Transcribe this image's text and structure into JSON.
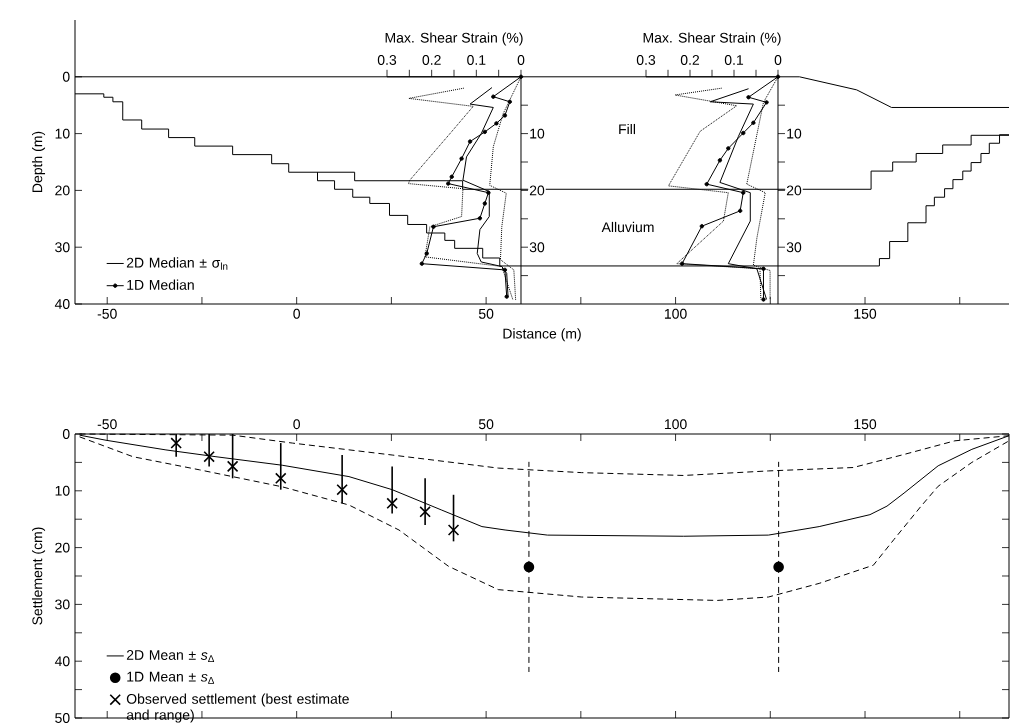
{
  "chart_data": [
    {
      "type": "line",
      "xlabel": "Distance (m)",
      "ylabel": "Depth (m)",
      "xlim": [
        -58.5,
        188
      ],
      "ylim": [
        40,
        -10
      ],
      "xticks": [
        -50,
        {
          "value": -25,
          "label": null
        },
        0,
        {
          "value": 25,
          "label": null
        },
        50,
        {
          "value": 75,
          "label": null
        },
        100,
        {
          "value": 125,
          "label": null
        },
        150,
        {
          "value": 175,
          "label": null
        }
      ],
      "yticks": [
        0,
        10,
        20,
        30,
        40
      ],
      "annotations": [
        "Fill",
        "Alluvium"
      ],
      "series": [
        {
          "type": "line",
          "color": "#000000",
          "line_style": "solid",
          "x": [
            -58.5,
            132.7,
            147.8,
            157,
            188
          ],
          "values": [
            0,
            0,
            2.3,
            5.4,
            5.4
          ]
        },
        {
          "type": "step",
          "color": "#000000",
          "line_style": "solid",
          "x": [
            -58.5,
            -50.9,
            -48.5,
            -45.9,
            -40.9,
            -33.8,
            -26.9,
            -16.9,
            -6.6,
            -2.1,
            15.3,
            43.8,
            151.6,
            157.3,
            163.5,
            170.5,
            178.0,
            188
          ],
          "values": [
            3.0,
            3.6,
            4.4,
            7.6,
            9.2,
            10.7,
            12.2,
            13.7,
            15.3,
            16.8,
            18.3,
            19.8,
            16.6,
            15.0,
            13.5,
            12.0,
            10.3,
            10.3
          ]
        },
        {
          "type": "step",
          "color": "#000000",
          "line_style": "solid",
          "x": [
            5.5,
            5.5,
            10.0,
            14.8,
            19.3,
            24.5,
            29.3,
            34.3,
            39.1,
            41.7,
            49.1,
            53.6,
            153.8,
            156.5,
            161.3,
            166.1,
            168.3,
            171.0,
            173.2,
            175.8,
            178.0,
            180.6,
            182.8,
            185.5,
            188
          ],
          "values": [
            16.8,
            18.3,
            19.8,
            21.2,
            22.3,
            24.4,
            26.0,
            27.5,
            28.8,
            30.2,
            31.9,
            33.3,
            32.0,
            29.0,
            25.7,
            22.7,
            21.2,
            19.7,
            18.1,
            16.6,
            15.1,
            13.5,
            11.7,
            10.2,
            10.2
          ]
        }
      ]
    },
    {
      "type": "line",
      "xlabel": "Max. Shear Strain (%)",
      "xlim": [
        0.3,
        0
      ],
      "ylim": [
        40,
        0
      ],
      "legend": "bottom left",
      "xticks": [
        0.3,
        {
          "value": 0.25,
          "label": null
        },
        0.2,
        {
          "value": 0.15,
          "label": null
        },
        0.1,
        {
          "value": 0.05,
          "label": null
        },
        0
      ],
      "yticks": [
        {
          "value": 5,
          "label": null
        },
        10,
        {
          "value": 15,
          "label": null
        },
        20,
        {
          "value": 25,
          "label": null
        },
        30,
        {
          "value": 35,
          "label": null
        }
      ],
      "series": [
        {
          "name": "2D Median ± σ$_{ln}$",
          "color": "#000000",
          "line_style": "solid",
          "x": [
            0.065,
            0.114,
            0.062,
            0.089,
            0.122,
            0.13,
            0.071,
            0.071,
            0.092,
            0.098,
            0.089,
            0.043,
            0.032,
            0.029
          ],
          "values": [
            1.9,
            4.8,
            5.4,
            10.0,
            14.1,
            18.2,
            20.2,
            24.6,
            26.9,
            31.1,
            32.6,
            33.4,
            34.6,
            38.7
          ]
        },
        {
          "color": "#000000",
          "line_style": "dotted",
          "x": [
            0.128,
            0.251,
            0.107,
            0.159,
            0.249,
            0.252,
            0.13,
            0.133,
            0.204,
            0.215,
            0.043,
            0.018
          ],
          "values": [
            2.0,
            3.8,
            5.2,
            10.0,
            18.2,
            18.8,
            19.7,
            24.6,
            26.4,
            31.7,
            33.4,
            39.3
          ]
        },
        {
          "color": "#000000",
          "line_style": "dotted",
          "x": [
            0,
            0.04,
            0.062,
            0.07,
            0.033,
            0.043,
            0.046,
            0.016,
            0.012
          ],
          "values": [
            0,
            6.5,
            12.3,
            19.1,
            20.5,
            26.4,
            32.2,
            34.0,
            39.3
          ]
        },
        {
          "name": "1D Median",
          "color": "#000000",
          "line_style": "solid",
          "marker": "circle",
          "x": [
            0,
            0.062,
            0.025,
            0.036,
            0.055,
            0.081,
            0.114,
            0.133,
            0.155,
            0.163,
            0.073,
            0.081,
            0.092,
            0.196,
            0.211,
            0.222,
            0.036,
            0.032
          ],
          "values": [
            0,
            3.5,
            4.4,
            6.8,
            8.2,
            9.7,
            11.4,
            14.4,
            17.6,
            18.8,
            20.4,
            22.3,
            24.9,
            26.4,
            31.1,
            32.9,
            34.0,
            38.7
          ]
        }
      ]
    },
    {
      "type": "line",
      "xlabel": "Max. Shear Strain (%)",
      "xlim": [
        0.3,
        0
      ],
      "ylim": [
        40,
        0
      ],
      "xticks": [
        0.3,
        {
          "value": 0.25,
          "label": null
        },
        0.2,
        {
          "value": 0.15,
          "label": null
        },
        0.1,
        {
          "value": 0.05,
          "label": null
        },
        0
      ],
      "yticks": [
        {
          "value": 5,
          "label": null
        },
        10,
        {
          "value": 15,
          "label": null
        },
        20,
        {
          "value": 25,
          "label": null
        },
        30,
        {
          "value": 35,
          "label": null
        }
      ],
      "series": [
        {
          "color": "#000000",
          "line_style": "solid",
          "x": [
            0.067,
            0.154,
            0.056,
            0.09,
            0.132,
            0.063,
            0.063,
            0.113,
            0.048,
            0.026
          ],
          "values": [
            2.1,
            4.4,
            4.8,
            10.5,
            18.6,
            20.4,
            25.4,
            32.9,
            33.8,
            39.2
          ]
        },
        {
          "color": "#000000",
          "line_style": "dotted",
          "x": [
            0.128,
            0.234,
            0.094,
            0.177,
            0.249,
            0.113,
            0.124,
            0.23,
            0.041,
            0.039
          ],
          "values": [
            2.0,
            3.2,
            5.1,
            9.6,
            19.2,
            20.4,
            25.4,
            32.9,
            33.8,
            39.2
          ]
        },
        {
          "color": "#000000",
          "line_style": "dotted",
          "x": [
            0,
            0.033,
            0.071,
            0.029,
            0.048,
            0.056,
            0.018,
            0.018
          ],
          "values": [
            0,
            4.5,
            18.9,
            20.4,
            28.4,
            33.2,
            34.1,
            39.2
          ]
        },
        {
          "color": "#000000",
          "line_style": "solid",
          "marker": "circle",
          "x": [
            0,
            0.067,
            0.026,
            0.056,
            0.079,
            0.113,
            0.132,
            0.162,
            0.079,
            0.086,
            0.173,
            0.218,
            0.033,
            0.033
          ],
          "values": [
            0,
            3.6,
            4.5,
            8.1,
            9.9,
            12.6,
            14.7,
            18.9,
            20.4,
            23.6,
            26.3,
            32.9,
            33.8,
            39.2
          ]
        }
      ]
    },
    {
      "type": "line",
      "ylabel": "Settlement (cm)",
      "xlim": [
        -58.5,
        188
      ],
      "ylim": [
        50,
        0
      ],
      "legend": "bottom left",
      "xticks": [
        -50,
        {
          "value": -25,
          "label": null
        },
        0,
        {
          "value": 25,
          "label": null
        },
        50,
        {
          "value": 75,
          "label": null
        },
        100,
        {
          "value": 125,
          "label": null
        },
        150,
        {
          "value": 175,
          "label": null
        }
      ],
      "yticks": [
        0,
        {
          "value": 5,
          "label": null
        },
        10,
        {
          "value": 15,
          "label": null
        },
        20,
        {
          "value": 25,
          "label": null
        },
        30,
        {
          "value": 35,
          "label": null
        },
        40,
        {
          "value": 45,
          "label": null
        },
        50
      ],
      "series": [
        {
          "name": "2D Mean ± *s*$_{Δ}$",
          "color": "#000000",
          "line_style": "solid",
          "x": [
            -57.3,
            -50.3,
            -34.5,
            -21.3,
            -3.8,
            13.8,
            25.2,
            38.3,
            48.9,
            55.0,
            66.2,
            102.1,
            124.5,
            137.9,
            151.3,
            155.8,
            160.3,
            164.8,
            169.3,
            178.2,
            188
          ],
          "values": [
            0.2,
            1.1,
            2.8,
            4.0,
            5.5,
            7.5,
            9.8,
            13.4,
            16.3,
            16.9,
            17.8,
            18.0,
            17.8,
            16.3,
            14.2,
            12.7,
            10.4,
            8.0,
            5.6,
            2.7,
            0.3
          ]
        },
        {
          "color": "#000000",
          "line_style": "dashed",
          "x": [
            -57.3,
            -16.9,
            -1.1,
            25.2,
            53.2,
            75.2,
            102.1,
            124.5,
            146.9,
            160.3,
            173.7,
            188
          ],
          "values": [
            0,
            0.2,
            1.6,
            3.7,
            6.0,
            6.8,
            7.3,
            6.5,
            5.9,
            3.6,
            1.2,
            0.3
          ]
        },
        {
          "color": "#000000",
          "line_style": "dashed",
          "x": [
            -57.3,
            -43.2,
            -25.7,
            -3.8,
            13.8,
            27.0,
            40.1,
            53.2,
            75.2,
            111.0,
            124.5,
            137.9,
            152.2,
            157.6,
            164.8,
            169.3,
            178.2,
            188
          ],
          "values": [
            0.5,
            4.0,
            6.3,
            9.3,
            12.5,
            16.9,
            23.3,
            27.4,
            28.7,
            29.3,
            28.7,
            26.3,
            23.1,
            18.6,
            12.7,
            9.2,
            5.0,
            1.2
          ]
        },
        {
          "type": "scatter",
          "name": "1D Mean ± *s*$_{Δ}$",
          "color": "#000000",
          "line_style": "dashed",
          "marker": "circle",
          "x": [
            61.3,
            127.2
          ],
          "values": [
            23.4,
            23.4
          ],
          "errors": [
            18.5,
            18.5
          ]
        },
        {
          "type": "scatter",
          "name": "Observed settlement (best estimate and range)",
          "color": "#000000",
          "line_style": "solid",
          "marker": "cross",
          "x": [
            -31.8,
            -23.1,
            -16.9,
            -4.2,
            12.0,
            25.2,
            33.9,
            41.4
          ],
          "values": [
            1.6,
            4.0,
            5.7,
            7.8,
            9.8,
            12.2,
            13.7,
            16.9
          ],
          "errors": [
            [
              0,
              4.0
            ],
            [
              0,
              5.7
            ],
            [
              0,
              7.8
            ],
            [
              1.6,
              9.8
            ],
            [
              3.7,
              12.2
            ],
            [
              5.7,
              14.0
            ],
            [
              7.8,
              16.0
            ],
            [
              10.7,
              18.9
            ]
          ]
        }
      ]
    }
  ]
}
